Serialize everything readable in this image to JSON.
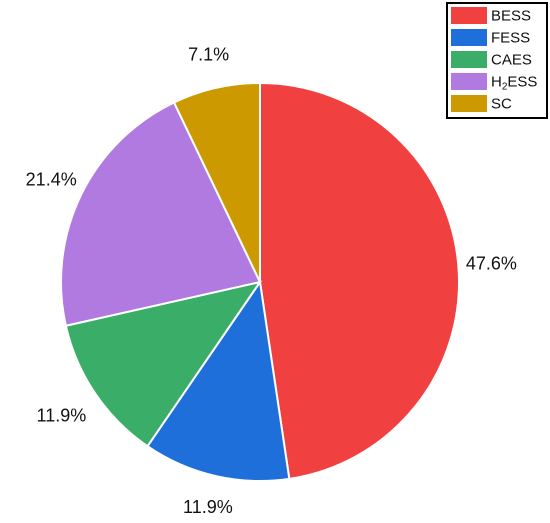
{
  "chart_data": {
    "type": "pie",
    "title": "",
    "start": "top",
    "direction": "clockwise",
    "legend_position": "top-right",
    "slices": [
      {
        "label": "BESS",
        "value": 47.6,
        "display": "47.6%",
        "color": "#f04040"
      },
      {
        "label": "FESS",
        "value": 11.9,
        "display": "11.9%",
        "color": "#1f6fdb"
      },
      {
        "label": "CAES",
        "value": 11.9,
        "display": "11.9%",
        "color": "#3aad68"
      },
      {
        "label": "H2ESS",
        "label_main": "H",
        "label_sub": "2",
        "label_tail": "ESS",
        "value": 21.4,
        "display": "21.4%",
        "color": "#b07ae0"
      },
      {
        "label": "SC",
        "value": 7.1,
        "display": "7.1%",
        "color": "#cc9900"
      }
    ]
  }
}
